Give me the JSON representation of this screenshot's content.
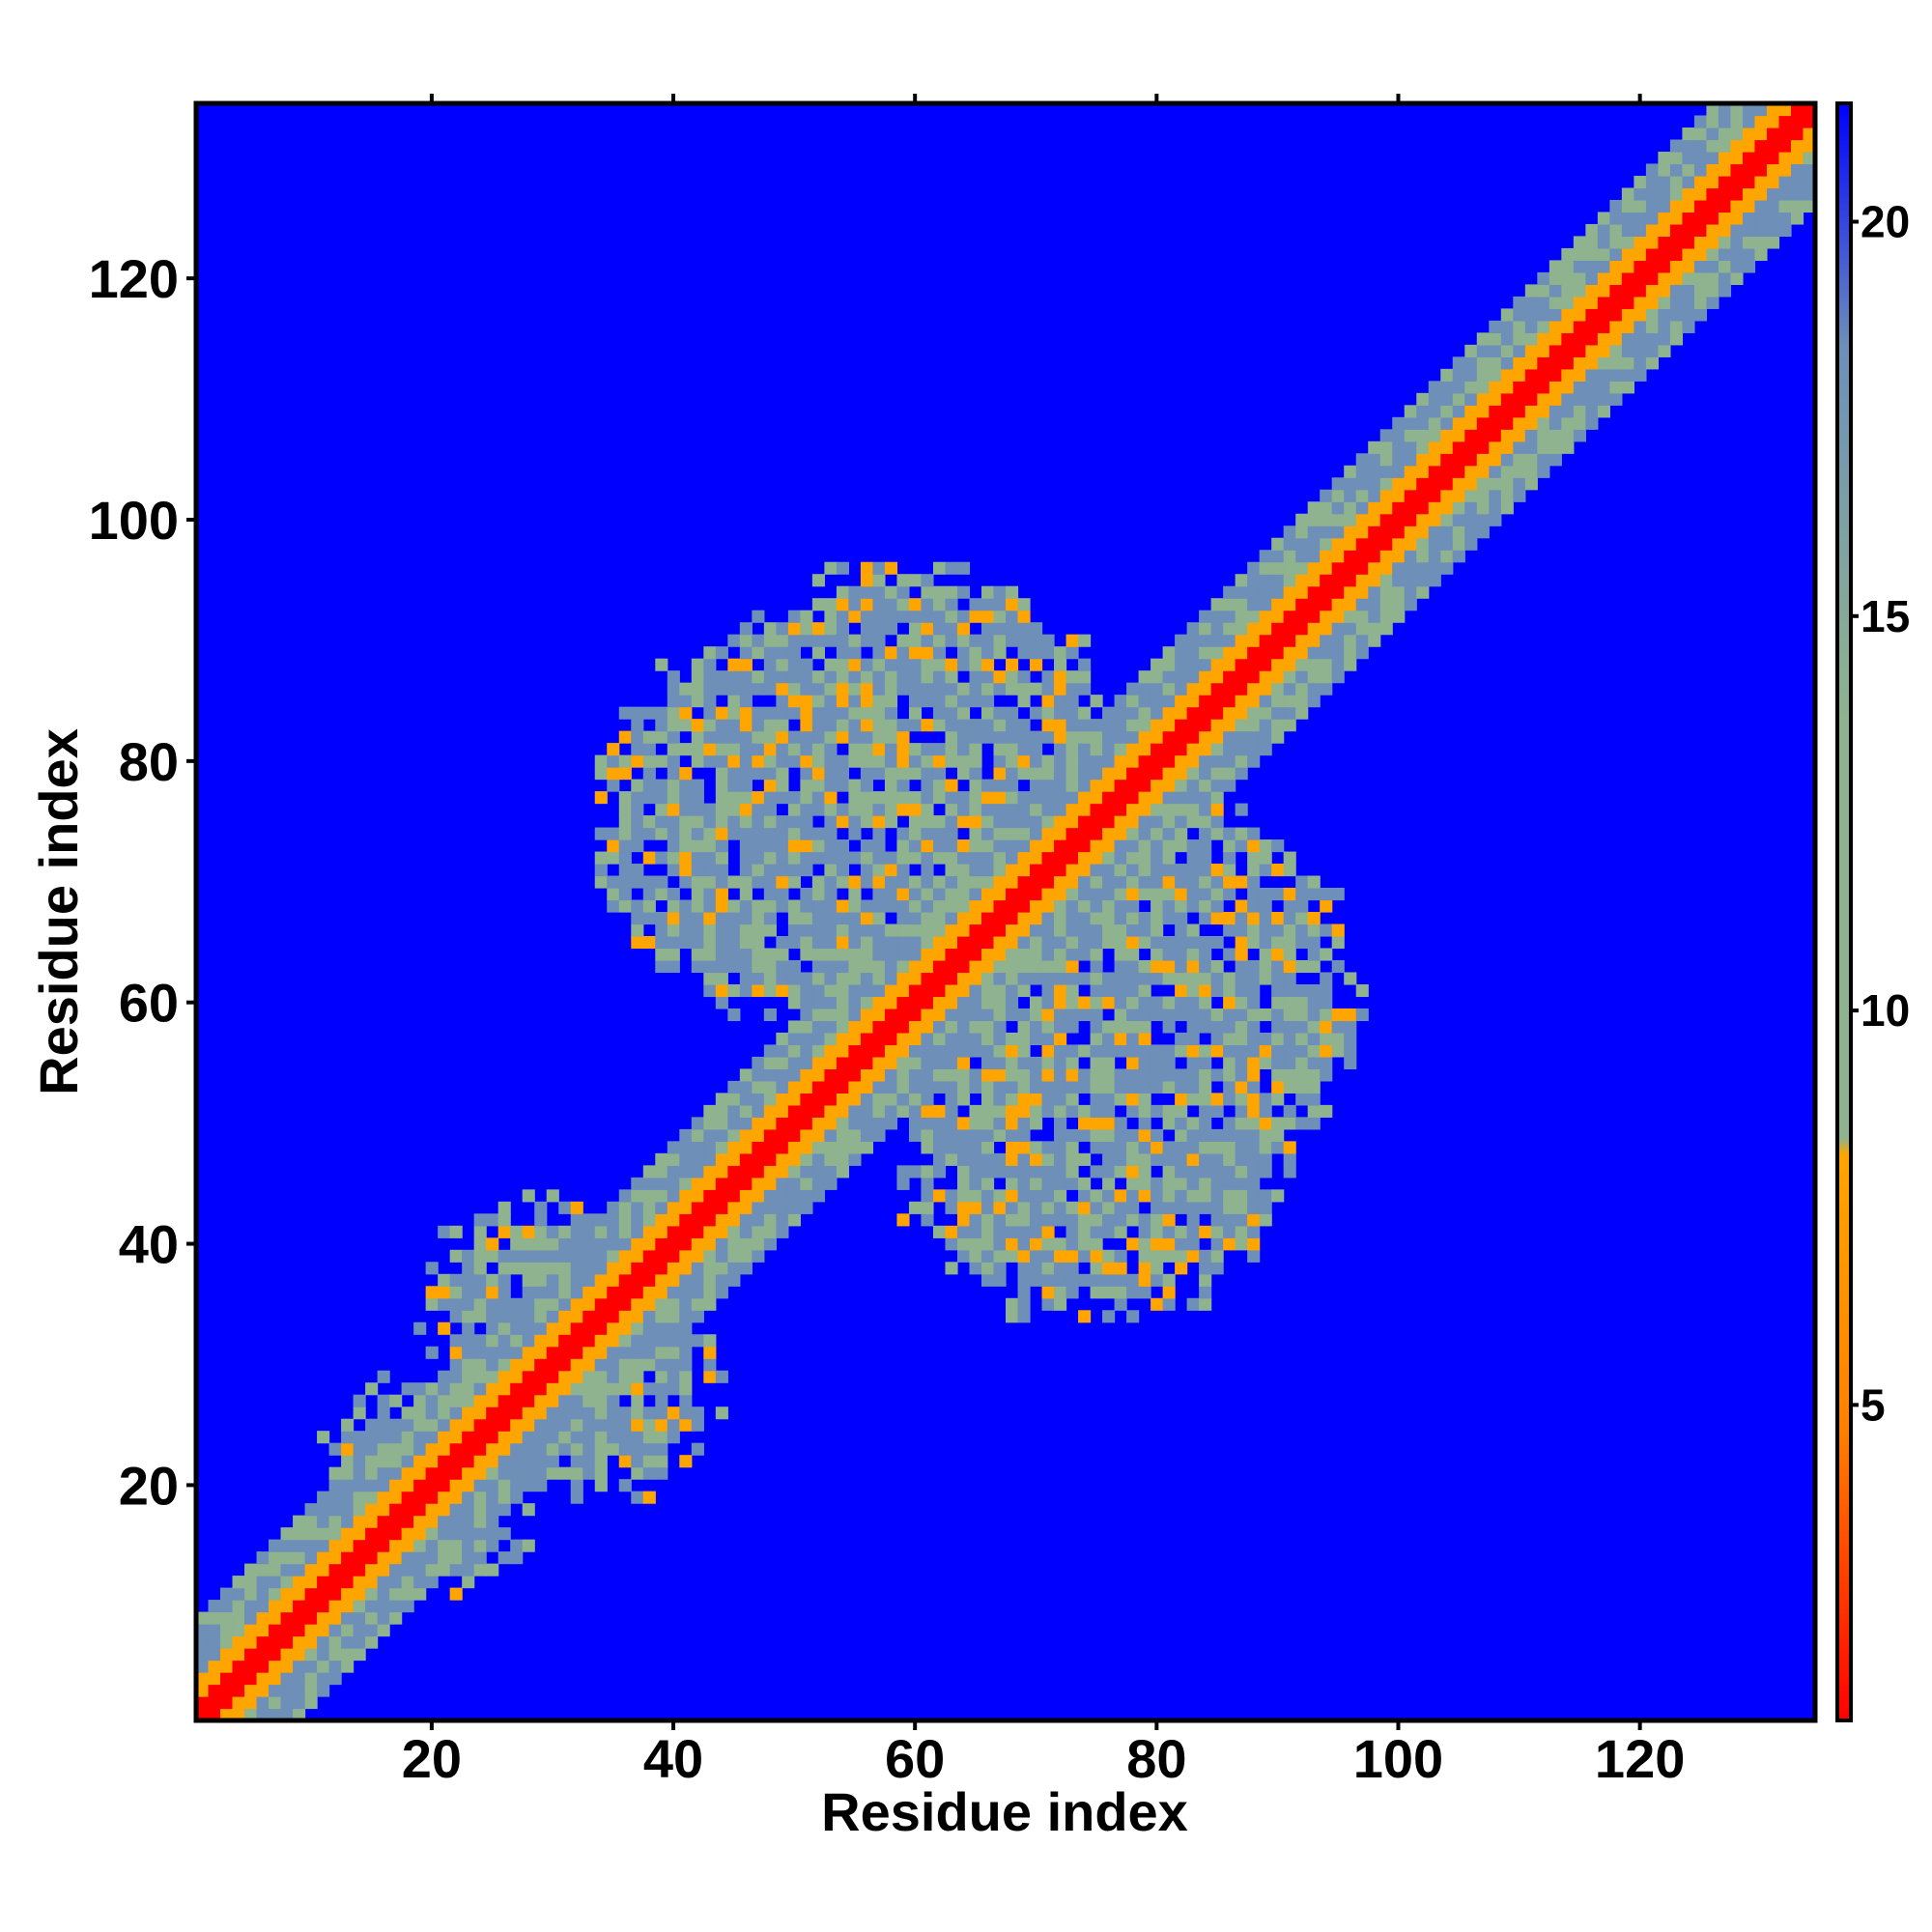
{
  "chart_data": {
    "type": "heatmap",
    "title": "",
    "xlabel": "Residue index",
    "ylabel": "Residue index",
    "xlim": [
      1,
      134
    ],
    "ylim": [
      1,
      134
    ],
    "x_ticks": [
      20,
      40,
      60,
      80,
      100,
      120
    ],
    "y_ticks": [
      20,
      40,
      60,
      80,
      100,
      120
    ],
    "colorbar": {
      "range": [
        1,
        21.5
      ],
      "ticks": [
        5,
        10,
        15,
        20
      ],
      "colors": [
        "#ff0000",
        "#ff8000",
        "#ffa500",
        "#8fb38f",
        "#6e8fb8",
        "#0000ff"
      ]
    },
    "background_color": "#0000ff",
    "description_values": {
      "diagonal_value": 1,
      "near_diagonal_value": 6,
      "band_value": 10,
      "off_band_value": 21
    },
    "features": {
      "diagonal_band_width_residues": 3,
      "contact_cluster_centers": [
        [
          60,
          80
        ],
        [
          75,
          50
        ],
        [
          35,
          28
        ],
        [
          22,
          18
        ]
      ],
      "contact_cluster_radii": [
        14,
        14,
        6,
        4
      ]
    }
  }
}
